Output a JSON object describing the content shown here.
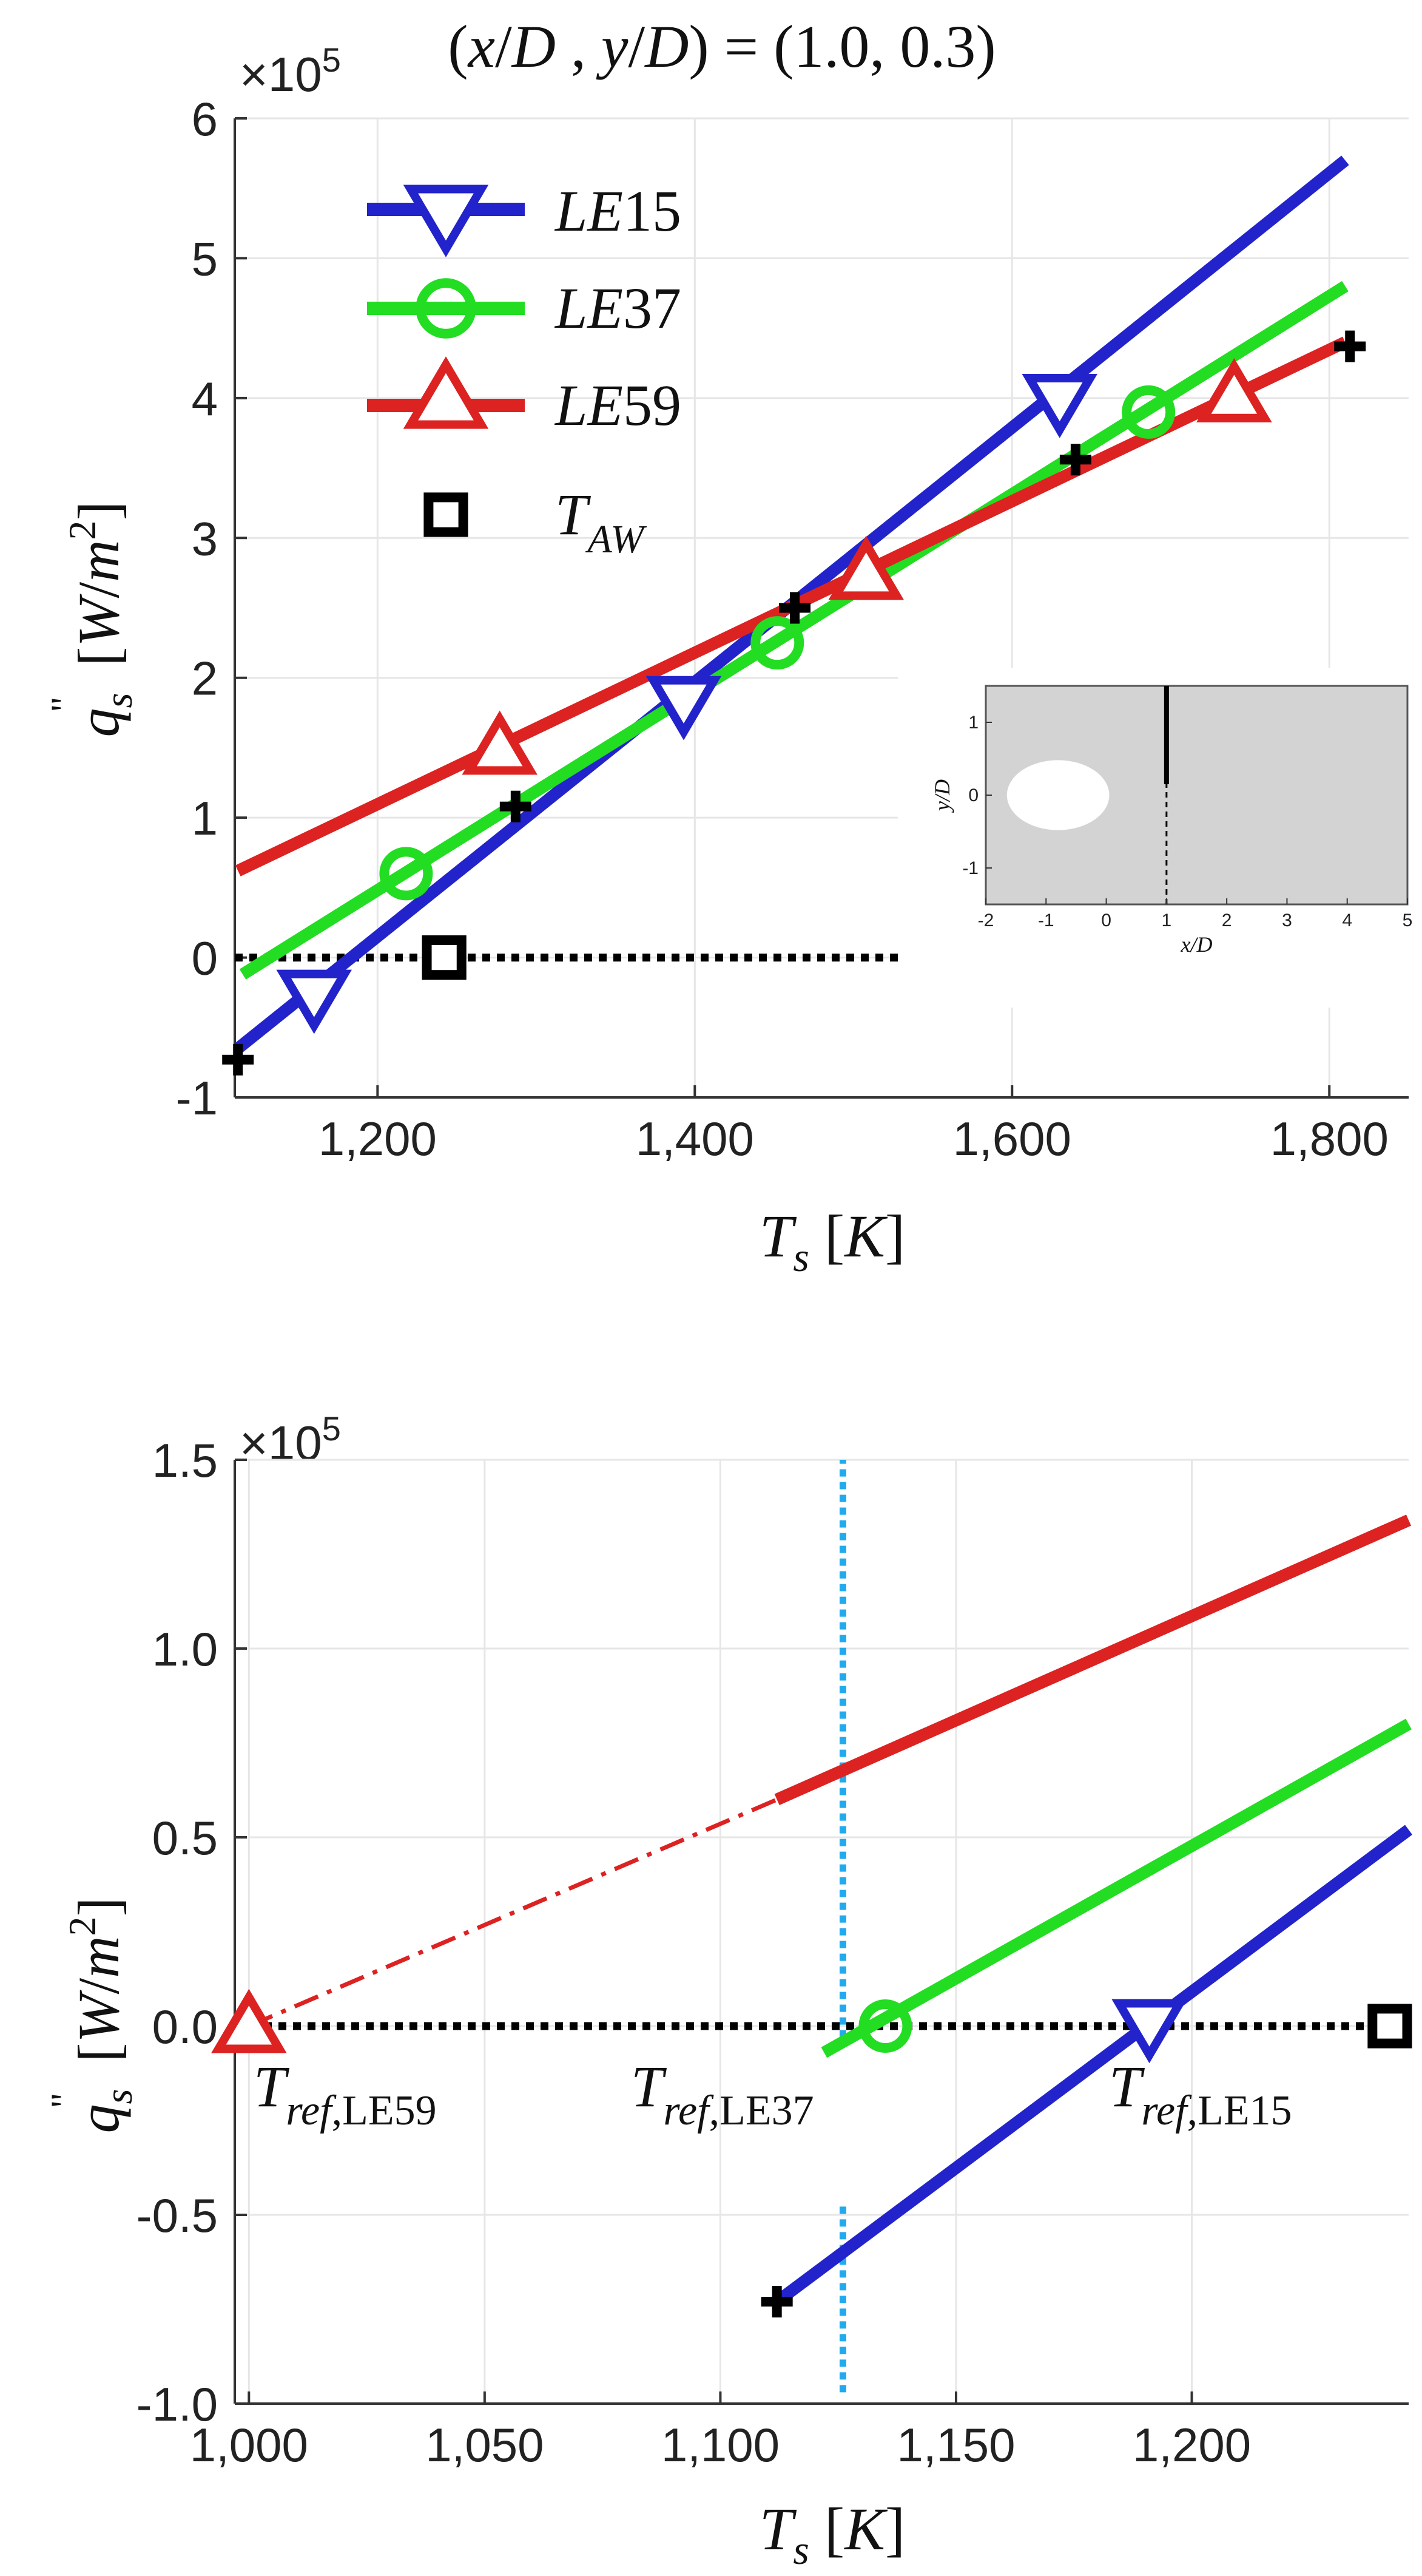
{
  "figure": {
    "title": "(x/D, y/D) = (1.0, 0.3)",
    "title_parts": {
      "open": "(",
      "x": "x",
      "slash1": "/",
      "d1": "D",
      "comma": " , ",
      "y": "y",
      "slash2": "/",
      "d2": "D",
      "close_eq": ") = (1.0, 0.3)"
    }
  },
  "colors": {
    "LE15": "#2323cc",
    "LE37": "#22dd22",
    "LE59": "#dd2222",
    "black": "#000000",
    "cyan": "#22aaee",
    "grid": "#e6e6e6",
    "inset_bg": "#d3d3d3"
  },
  "chart_data": [
    {
      "type": "line",
      "title": "(x/D , y/D) = (1.0, 0.3)",
      "xlabel": "T_s [K]",
      "ylabel": "q_s'' [W/m^2]",
      "exponent_label": "×10",
      "exponent_power": "5",
      "xlim": [
        1110,
        1850
      ],
      "ylim": [
        -1,
        6
      ],
      "xticks": [
        1200,
        1400,
        1600,
        1800
      ],
      "xtick_labels": [
        "1,200",
        "1,400",
        "1,600",
        "1,800"
      ],
      "yticks": [
        -1,
        0,
        1,
        2,
        3,
        4,
        5,
        6
      ],
      "ytick_labels": [
        "-1",
        "0",
        "1",
        "2",
        "3",
        "4",
        "5",
        "6"
      ],
      "grid": true,
      "legend_position": "top-left",
      "series": [
        {
          "name": "LE15",
          "label_prefix": "LE",
          "label_num": "15",
          "color_key": "LE15",
          "marker": "triangle-down",
          "line": [
            [
              1112,
              -0.65
            ],
            [
              1810,
              5.7
            ]
          ],
          "markers": [
            [
              1160,
              -0.28
            ],
            [
              1393,
              1.82
            ],
            [
              1630,
              3.98
            ]
          ]
        },
        {
          "name": "LE37",
          "label_prefix": "LE",
          "label_num": "37",
          "color_key": "LE37",
          "marker": "circle",
          "line": [
            [
              1115,
              -0.12
            ],
            [
              1810,
              4.8
            ]
          ],
          "markers": [
            [
              1218,
              0.6
            ],
            [
              1452,
              2.25
            ],
            [
              1686,
              3.9
            ]
          ]
        },
        {
          "name": "LE59",
          "label_prefix": "LE",
          "label_num": "59",
          "color_key": "LE59",
          "marker": "triangle-up",
          "line": [
            [
              1112,
              0.62
            ],
            [
              1810,
              4.4
            ]
          ],
          "markers": [
            [
              1277,
              1.5
            ],
            [
              1508,
              2.75
            ],
            [
              1740,
              4.02
            ]
          ]
        },
        {
          "name": "T_AW",
          "label_prefix": "T",
          "label_sub": "AW",
          "color_key": "black",
          "marker": "square",
          "markers": [
            [
              1242,
              0.0
            ]
          ]
        }
      ],
      "plus_markers": [
        [
          1112,
          -0.73
        ],
        [
          1287,
          1.08
        ],
        [
          1463,
          2.5
        ],
        [
          1640,
          3.56
        ],
        [
          1813,
          4.37
        ]
      ],
      "zero_line": {
        "y": 0,
        "style": "dotted"
      },
      "inset": {
        "xlabel": "x/D",
        "ylabel": "y/D",
        "xlim": [
          -2,
          5
        ],
        "ylim": [
          -1.5,
          1.5
        ],
        "xticks": [
          -2,
          -1,
          0,
          1,
          2,
          3,
          4,
          5
        ],
        "xtick_labels": [
          "-2",
          "-1",
          "0",
          "1",
          "2",
          "3",
          "4",
          "5"
        ],
        "yticks": [
          -1,
          0,
          1
        ],
        "ytick_labels": [
          "-1",
          "0",
          "1"
        ],
        "hole": {
          "cx": -0.8,
          "cy": 0.0,
          "rx": 0.85,
          "ry": 0.48
        },
        "probe_line": {
          "x": 1.0,
          "solid": [
            0.15,
            1.5
          ],
          "dashed": [
            -1.5,
            0.15
          ]
        }
      }
    },
    {
      "type": "line",
      "xlabel": "T_s [K]",
      "ylabel": "q_s'' [W/m^2]",
      "exponent_label": "×10",
      "exponent_power": "5",
      "xlim": [
        997,
        1246
      ],
      "ylim": [
        -1.0,
        1.5
      ],
      "xticks": [
        1000,
        1050,
        1100,
        1150,
        1200
      ],
      "xtick_labels": [
        "1,000",
        "1,050",
        "1,100",
        "1,150",
        "1,200"
      ],
      "yticks": [
        -1.0,
        -0.5,
        0.0,
        0.5,
        1.0,
        1.5
      ],
      "ytick_labels": [
        "-1.0",
        "-0.5",
        "0.0",
        "0.5",
        "1.0",
        "1.5"
      ],
      "grid": true,
      "series": [
        {
          "name": "LE59",
          "color_key": "LE59",
          "line": [
            [
              1112,
              0.6
            ],
            [
              1246,
              1.34
            ]
          ],
          "extrapolation": [
            [
              1000,
              0.0
            ],
            [
              1112,
              0.6
            ]
          ],
          "markers": [
            [
              1000,
              0.0
            ]
          ],
          "marker": "triangle-up"
        },
        {
          "name": "LE37",
          "color_key": "LE37",
          "line": [
            [
              1122,
              -0.07
            ],
            [
              1246,
              0.8
            ]
          ],
          "markers": [
            [
              1135,
              0.0
            ]
          ],
          "marker": "circle"
        },
        {
          "name": "LE15",
          "color_key": "LE15",
          "line": [
            [
              1112,
              -0.73
            ],
            [
              1246,
              0.52
            ]
          ],
          "markers": [
            [
              1191,
              0.0
            ]
          ],
          "marker": "triangle-down"
        },
        {
          "name": "T_AW",
          "color_key": "black",
          "markers": [
            [
              1242,
              0.0
            ]
          ],
          "marker": "square"
        }
      ],
      "plus_markers": [
        [
          1112,
          -0.73
        ]
      ],
      "zero_line": {
        "y": 0,
        "style": "dotted"
      },
      "vline": {
        "x": 1126,
        "segments": [
          [
            -0.97,
            -0.47
          ],
          [
            -0.03,
            1.5
          ]
        ],
        "style": "dotted",
        "color_key": "cyan"
      },
      "annotations": [
        {
          "id": "tref59",
          "base": "T",
          "sub1": "ref",
          "sub2": ",LE59"
        },
        {
          "id": "tref37",
          "base": "T",
          "sub1": "ref",
          "sub2": ",LE37"
        },
        {
          "id": "tref15",
          "base": "T",
          "sub1": "ref",
          "sub2": ",LE15"
        }
      ]
    }
  ]
}
